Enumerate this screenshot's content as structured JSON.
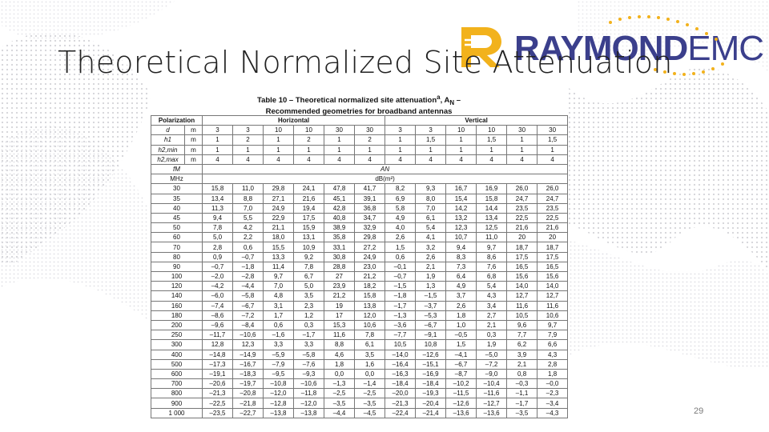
{
  "slide": {
    "title": "Theoretical Normalized Site Attenuation",
    "page_number": "29"
  },
  "logo": {
    "brand_primary": "RAYMOND",
    "brand_secondary": "EMC",
    "color": "#3b3f8c",
    "accent": "#f2b21c"
  },
  "table": {
    "caption_line1": "Table 10 – Theoretical normalized site attenuation",
    "caption_sup": "a",
    "caption_sym": ", A",
    "caption_sub": "N",
    "caption_dash": " –",
    "caption_line2": "Recommended geometries for broadband antennas",
    "polarization_label": "Polarization",
    "horizontal_label": "Horizontal",
    "vertical_label": "Vertical",
    "geometry_rows": [
      {
        "sym": "d",
        "unit": "m",
        "values": [
          "3",
          "3",
          "10",
          "10",
          "30",
          "30",
          "3",
          "3",
          "10",
          "10",
          "30",
          "30"
        ]
      },
      {
        "sym": "h1",
        "unit": "m",
        "values": [
          "1",
          "2",
          "1",
          "2",
          "1",
          "2",
          "1",
          "1,5",
          "1",
          "1,5",
          "1",
          "1,5"
        ]
      },
      {
        "sym": "h2,min",
        "unit": "m",
        "values": [
          "1",
          "1",
          "1",
          "1",
          "1",
          "1",
          "1",
          "1",
          "1",
          "1",
          "1",
          "1"
        ]
      },
      {
        "sym": "h2,max",
        "unit": "m",
        "values": [
          "4",
          "4",
          "4",
          "4",
          "4",
          "4",
          "4",
          "4",
          "4",
          "4",
          "4",
          "4"
        ]
      }
    ],
    "freq_label": "fM",
    "freq_unit": "MHz",
    "an_label": "AN",
    "an_unit": "dB(m²)",
    "rows": [
      [
        "30",
        "15,8",
        "11,0",
        "29,8",
        "24,1",
        "47,8",
        "41,7",
        "8,2",
        "9,3",
        "16,7",
        "16,9",
        "26,0",
        "26,0"
      ],
      [
        "35",
        "13,4",
        "8,8",
        "27,1",
        "21,6",
        "45,1",
        "39,1",
        "6,9",
        "8,0",
        "15,4",
        "15,8",
        "24,7",
        "24,7"
      ],
      [
        "40",
        "11,3",
        "7,0",
        "24,9",
        "19,4",
        "42,8",
        "36,8",
        "5,8",
        "7,0",
        "14,2",
        "14,4",
        "23,5",
        "23,5"
      ],
      [
        "45",
        "9,4",
        "5,5",
        "22,9",
        "17,5",
        "40,8",
        "34,7",
        "4,9",
        "6,1",
        "13,2",
        "13,4",
        "22,5",
        "22,5"
      ],
      [
        "50",
        "7,8",
        "4,2",
        "21,1",
        "15,9",
        "38,9",
        "32,9",
        "4,0",
        "5,4",
        "12,3",
        "12,5",
        "21,6",
        "21,6"
      ],
      [
        "60",
        "5,0",
        "2,2",
        "18,0",
        "13,1",
        "35,8",
        "29,8",
        "2,6",
        "4,1",
        "10,7",
        "11,0",
        "20",
        "20"
      ],
      [
        "70",
        "2,8",
        "0,6",
        "15,5",
        "10,9",
        "33,1",
        "27,2",
        "1,5",
        "3,2",
        "9,4",
        "9,7",
        "18,7",
        "18,7"
      ],
      [
        "80",
        "0,9",
        "–0,7",
        "13,3",
        "9,2",
        "30,8",
        "24,9",
        "0,6",
        "2,6",
        "8,3",
        "8,6",
        "17,5",
        "17,5"
      ],
      [
        "90",
        "–0,7",
        "–1,8",
        "11,4",
        "7,8",
        "28,8",
        "23,0",
        "–0,1",
        "2,1",
        "7,3",
        "7,6",
        "16,5",
        "16,5"
      ],
      [
        "100",
        "–2,0",
        "–2,8",
        "9,7",
        "6,7",
        "27",
        "21,2",
        "–0,7",
        "1,9",
        "6,4",
        "6,8",
        "15,6",
        "15,6"
      ],
      [
        "120",
        "–4,2",
        "–4,4",
        "7,0",
        "5,0",
        "23,9",
        "18,2",
        "–1,5",
        "1,3",
        "4,9",
        "5,4",
        "14,0",
        "14,0"
      ],
      [
        "140",
        "–6,0",
        "–5,8",
        "4,8",
        "3,5",
        "21,2",
        "15,8",
        "–1,8",
        "–1,5",
        "3,7",
        "4,3",
        "12,7",
        "12,7"
      ],
      [
        "160",
        "–7,4",
        "–6,7",
        "3,1",
        "2,3",
        "19",
        "13,8",
        "–1,7",
        "–3,7",
        "2,6",
        "3,4",
        "11,6",
        "11,6"
      ],
      [
        "180",
        "–8,6",
        "–7,2",
        "1,7",
        "1,2",
        "17",
        "12,0",
        "–1,3",
        "–5,3",
        "1,8",
        "2,7",
        "10,5",
        "10,6"
      ],
      [
        "200",
        "–9,6",
        "–8,4",
        "0,6",
        "0,3",
        "15,3",
        "10,6",
        "–3,6",
        "–6,7",
        "1,0",
        "2,1",
        "9,6",
        "9,7"
      ],
      [
        "250",
        "–11,7",
        "–10,6",
        "–1,6",
        "–1,7",
        "11,6",
        "7,8",
        "–7,7",
        "–9,1",
        "–0,5",
        "0,3",
        "7,7",
        "7,9"
      ],
      [
        "300",
        "12,8",
        "12,3",
        "3,3",
        "3,3",
        "8,8",
        "6,1",
        "10,5",
        "10,8",
        "1,5",
        "1,9",
        "6,2",
        "6,6"
      ],
      [
        "400",
        "–14,8",
        "–14,9",
        "–5,9",
        "–5,8",
        "4,6",
        "3,5",
        "–14,0",
        "–12,6",
        "–4,1",
        "–5,0",
        "3,9",
        "4,3"
      ],
      [
        "500",
        "–17,3",
        "–16,7",
        "–7,9",
        "–7,6",
        "1,8",
        "1,6",
        "–16,4",
        "–15,1",
        "–6,7",
        "–7,2",
        "2,1",
        "2,8"
      ],
      [
        "600",
        "–19,1",
        "–18,3",
        "–9,5",
        "–9,3",
        "0,0",
        "0,0",
        "–16,3",
        "–16,9",
        "–8,7",
        "–9,0",
        "0,8",
        "1,8"
      ],
      [
        "700",
        "–20,6",
        "–19,7",
        "–10,8",
        "–10,6",
        "–1,3",
        "–1,4",
        "–18,4",
        "–18,4",
        "–10,2",
        "–10,4",
        "–0,3",
        "–0,0"
      ],
      [
        "800",
        "–21,3",
        "–20,8",
        "–12,0",
        "–11,8",
        "–2,5",
        "–2,5",
        "–20,0",
        "–19,3",
        "–11,5",
        "–11,6",
        "–1,1",
        "–2,3"
      ],
      [
        "900",
        "–22,5",
        "–21,8",
        "–12,8",
        "–12,0",
        "–3,5",
        "–3,5",
        "–21,3",
        "–20,4",
        "–12,6",
        "–12,7",
        "–1,7",
        "–3,4"
      ],
      [
        "1 000",
        "–23,5",
        "–22,7",
        "–13,8",
        "–13,8",
        "–4,4",
        "–4,5",
        "–22,4",
        "–21,4",
        "–13,6",
        "–13,6",
        "–3,5",
        "–4,3"
      ]
    ]
  }
}
